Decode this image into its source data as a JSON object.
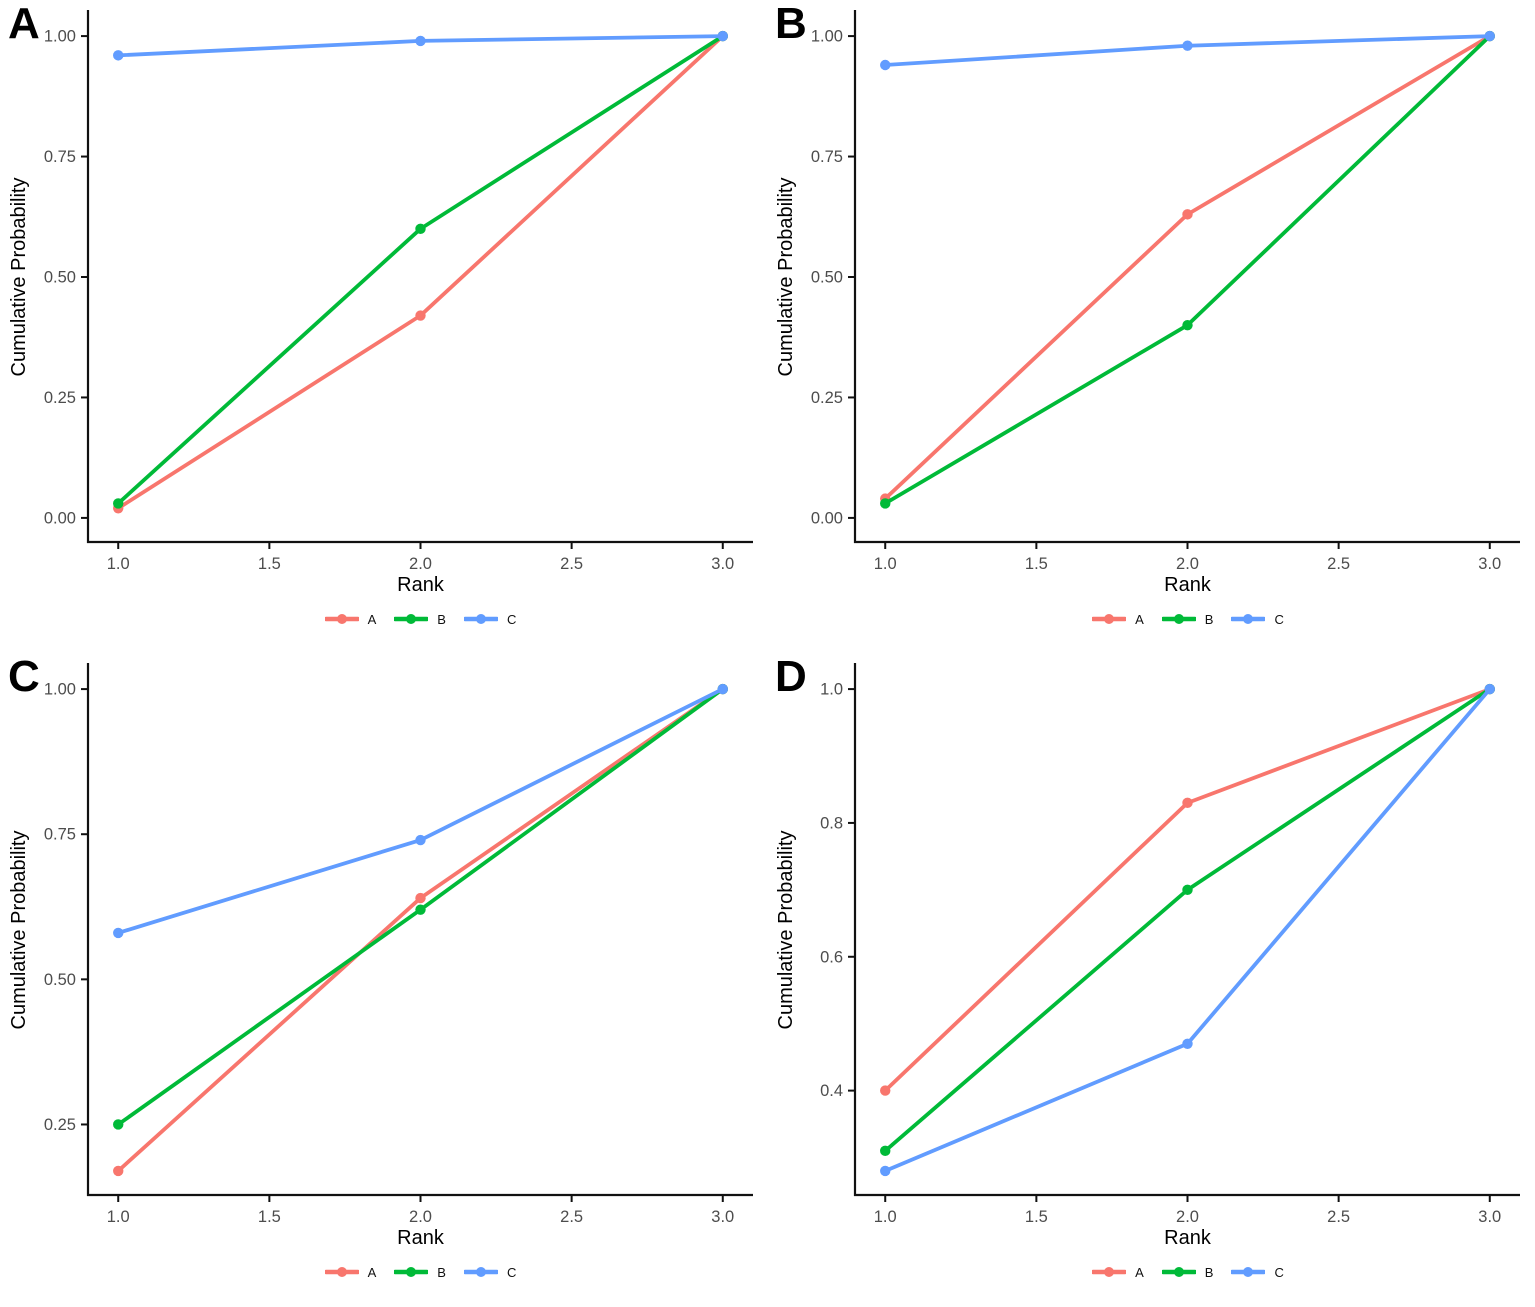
{
  "figure_title": "",
  "accent_colors": {
    "series_a": "#F8766D",
    "series_b": "#00BA38",
    "series_c": "#619CFF",
    "axis_text": "#4D4D4D",
    "axis_line": "#111111"
  },
  "chart_data": [
    {
      "type": "line",
      "panel_label": "A",
      "xlabel": "Rank",
      "ylabel": "Cumulative Probability",
      "xlim": [
        1,
        3
      ],
      "ylim": [
        0,
        1
      ],
      "x": [
        1,
        2,
        3
      ],
      "xticks": [
        {
          "v": 1.0,
          "label": "1.0"
        },
        {
          "v": 1.5,
          "label": "1.5"
        },
        {
          "v": 2.0,
          "label": "2.0"
        },
        {
          "v": 2.5,
          "label": "2.5"
        },
        {
          "v": 3.0,
          "label": "3.0"
        }
      ],
      "yticks": [
        {
          "v": 0.0,
          "label": "0.00"
        },
        {
          "v": 0.25,
          "label": "0.25"
        },
        {
          "v": 0.5,
          "label": "0.50"
        },
        {
          "v": 0.75,
          "label": "0.75"
        },
        {
          "v": 1.0,
          "label": "1.00"
        }
      ],
      "series": [
        {
          "name": "A",
          "color": "#F8766D",
          "values": [
            0.02,
            0.42,
            1.0
          ]
        },
        {
          "name": "B",
          "color": "#00BA38",
          "values": [
            0.03,
            0.6,
            1.0
          ]
        },
        {
          "name": "C",
          "color": "#619CFF",
          "values": [
            0.96,
            0.99,
            1.0
          ]
        }
      ],
      "legend_position": "bottom",
      "grid": false
    },
    {
      "type": "line",
      "panel_label": "B",
      "xlabel": "Rank",
      "ylabel": "Cumulative Probability",
      "xlim": [
        1,
        3
      ],
      "ylim": [
        0,
        1
      ],
      "x": [
        1,
        2,
        3
      ],
      "xticks": [
        {
          "v": 1.0,
          "label": "1.0"
        },
        {
          "v": 1.5,
          "label": "1.5"
        },
        {
          "v": 2.0,
          "label": "2.0"
        },
        {
          "v": 2.5,
          "label": "2.5"
        },
        {
          "v": 3.0,
          "label": "3.0"
        }
      ],
      "yticks": [
        {
          "v": 0.0,
          "label": "0.00"
        },
        {
          "v": 0.25,
          "label": "0.25"
        },
        {
          "v": 0.5,
          "label": "0.50"
        },
        {
          "v": 0.75,
          "label": "0.75"
        },
        {
          "v": 1.0,
          "label": "1.00"
        }
      ],
      "series": [
        {
          "name": "A",
          "color": "#F8766D",
          "values": [
            0.04,
            0.63,
            1.0
          ]
        },
        {
          "name": "B",
          "color": "#00BA38",
          "values": [
            0.03,
            0.4,
            1.0
          ]
        },
        {
          "name": "C",
          "color": "#619CFF",
          "values": [
            0.94,
            0.98,
            1.0
          ]
        }
      ],
      "legend_position": "bottom",
      "grid": false
    },
    {
      "type": "line",
      "panel_label": "C",
      "xlabel": "Rank",
      "ylabel": "Cumulative Probability",
      "xlim": [
        1,
        3
      ],
      "ylim": [
        0.17,
        1.0
      ],
      "x": [
        1,
        2,
        3
      ],
      "xticks": [
        {
          "v": 1.0,
          "label": "1.0"
        },
        {
          "v": 1.5,
          "label": "1.5"
        },
        {
          "v": 2.0,
          "label": "2.0"
        },
        {
          "v": 2.5,
          "label": "2.5"
        },
        {
          "v": 3.0,
          "label": "3.0"
        }
      ],
      "yticks": [
        {
          "v": 0.25,
          "label": "0.25"
        },
        {
          "v": 0.5,
          "label": "0.50"
        },
        {
          "v": 0.75,
          "label": "0.75"
        },
        {
          "v": 1.0,
          "label": "1.00"
        }
      ],
      "series": [
        {
          "name": "A",
          "color": "#F8766D",
          "values": [
            0.17,
            0.64,
            1.0
          ]
        },
        {
          "name": "B",
          "color": "#00BA38",
          "values": [
            0.25,
            0.62,
            1.0
          ]
        },
        {
          "name": "C",
          "color": "#619CFF",
          "values": [
            0.58,
            0.74,
            1.0
          ]
        }
      ],
      "legend_position": "bottom",
      "grid": false
    },
    {
      "type": "line",
      "panel_label": "D",
      "xlabel": "Rank",
      "ylabel": "Cumulative Probability",
      "xlim": [
        1,
        3
      ],
      "ylim": [
        0.28,
        1.0
      ],
      "x": [
        1,
        2,
        3
      ],
      "xticks": [
        {
          "v": 1.0,
          "label": "1.0"
        },
        {
          "v": 1.5,
          "label": "1.5"
        },
        {
          "v": 2.0,
          "label": "2.0"
        },
        {
          "v": 2.5,
          "label": "2.5"
        },
        {
          "v": 3.0,
          "label": "3.0"
        }
      ],
      "yticks": [
        {
          "v": 0.4,
          "label": "0.4"
        },
        {
          "v": 0.6,
          "label": "0.6"
        },
        {
          "v": 0.8,
          "label": "0.8"
        },
        {
          "v": 1.0,
          "label": "1.0"
        }
      ],
      "series": [
        {
          "name": "A",
          "color": "#F8766D",
          "values": [
            0.4,
            0.83,
            1.0
          ]
        },
        {
          "name": "B",
          "color": "#00BA38",
          "values": [
            0.31,
            0.7,
            1.0
          ]
        },
        {
          "name": "C",
          "color": "#619CFF",
          "values": [
            0.28,
            0.47,
            1.0
          ]
        }
      ],
      "legend_position": "bottom",
      "grid": false
    }
  ]
}
